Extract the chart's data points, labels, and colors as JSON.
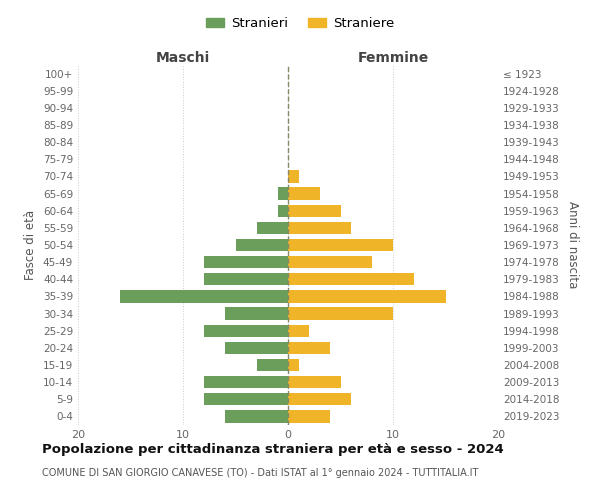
{
  "age_groups": [
    "100+",
    "95-99",
    "90-94",
    "85-89",
    "80-84",
    "75-79",
    "70-74",
    "65-69",
    "60-64",
    "55-59",
    "50-54",
    "45-49",
    "40-44",
    "35-39",
    "30-34",
    "25-29",
    "20-24",
    "15-19",
    "10-14",
    "5-9",
    "0-4"
  ],
  "birth_years": [
    "≤ 1923",
    "1924-1928",
    "1929-1933",
    "1934-1938",
    "1939-1943",
    "1944-1948",
    "1949-1953",
    "1954-1958",
    "1959-1963",
    "1964-1968",
    "1969-1973",
    "1974-1978",
    "1979-1983",
    "1984-1988",
    "1989-1993",
    "1994-1998",
    "1999-2003",
    "2004-2008",
    "2009-2013",
    "2014-2018",
    "2019-2023"
  ],
  "maschi": [
    0,
    0,
    0,
    0,
    0,
    0,
    0,
    1,
    1,
    3,
    5,
    8,
    8,
    16,
    6,
    8,
    6,
    3,
    8,
    8,
    6
  ],
  "femmine": [
    0,
    0,
    0,
    0,
    0,
    0,
    1,
    3,
    5,
    6,
    10,
    8,
    12,
    15,
    10,
    2,
    4,
    1,
    5,
    6,
    4
  ],
  "male_color": "#6a9e5a",
  "female_color": "#f0b429",
  "title": "Popolazione per cittadinanza straniera per età e sesso - 2024",
  "subtitle": "COMUNE DI SAN GIORGIO CANAVESE (TO) - Dati ISTAT al 1° gennaio 2024 - TUTTITALIA.IT",
  "xlabel_left": "Maschi",
  "xlabel_right": "Femmine",
  "ylabel_left": "Fasce di età",
  "ylabel_right": "Anni di nascita",
  "legend_male": "Stranieri",
  "legend_female": "Straniere",
  "xlim": 20,
  "bg_color": "#ffffff",
  "grid_color": "#cccccc"
}
